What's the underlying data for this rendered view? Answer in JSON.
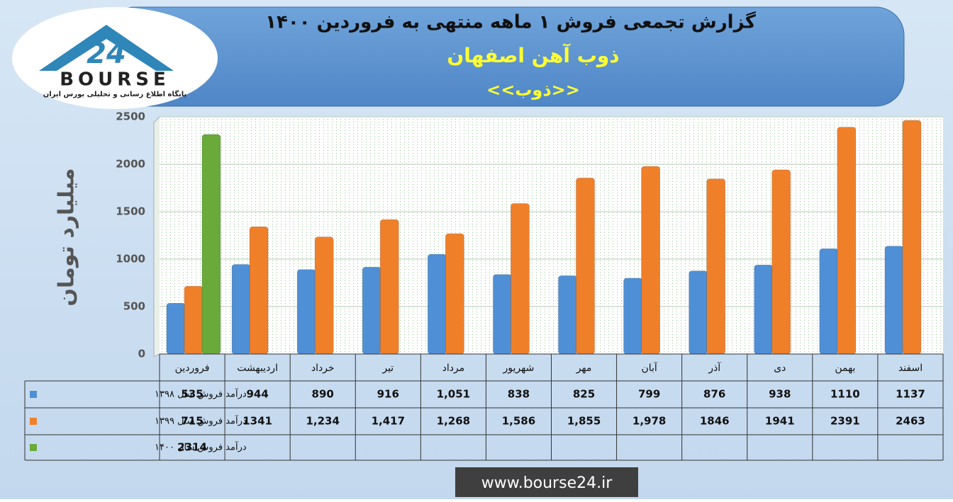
{
  "chart_data": {
    "type": "bar",
    "title": "گزارش تجمعی فروش ۱ ماهه منتهی به فروردین ۱۴۰۰",
    "subtitle": "ذوب آهن اصفهان",
    "symbol": "<<ذوب>>",
    "y_label": "میلیارد تومان",
    "website": "www.bourse24.ir",
    "logo": {
      "number": "24",
      "name": "BOURSE",
      "tagline": "پایگاه اطلاع رسانی و تحلیلی بورس ایران"
    },
    "categories": [
      "فروردین",
      "اردیبهشت",
      "خرداد",
      "تیر",
      "مرداد",
      "شهریور",
      "مهر",
      "آبان",
      "آذر",
      "دی",
      "بهمن",
      "اسفند"
    ],
    "series": [
      {
        "name": "درآمد فروش سال ۱۳۹۸",
        "color": "#4f8fd6",
        "values": [
          535,
          944,
          890,
          916,
          1051,
          838,
          825,
          799,
          876,
          938,
          1110,
          1137
        ],
        "value_labels": [
          "535",
          "944",
          "890",
          "916",
          "1,051",
          "838",
          "825",
          "799",
          "876",
          "938",
          "1110",
          "1137"
        ]
      },
      {
        "name": "درآمد فروش سال ۱۳۹۹",
        "color": "#f07f2a",
        "values": [
          715,
          1341,
          1234,
          1417,
          1268,
          1586,
          1855,
          1978,
          1846,
          1941,
          2391,
          2463
        ],
        "value_labels": [
          "715",
          "1341",
          "1,234",
          "1,417",
          "1,268",
          "1,586",
          "1,855",
          "1,978",
          "1846",
          "1941",
          "2391",
          "2463"
        ]
      },
      {
        "name": "درآمد فروش سال ۱۴۰۰",
        "color": "#6aaa3a",
        "values": [
          2314,
          null,
          null,
          null,
          null,
          null,
          null,
          null,
          null,
          null,
          null,
          null
        ]
      }
    ],
    "ylim": [
      0,
      2500
    ],
    "yticks": [
      0,
      500,
      1000,
      1500,
      2000,
      2500
    ],
    "grid": true
  }
}
